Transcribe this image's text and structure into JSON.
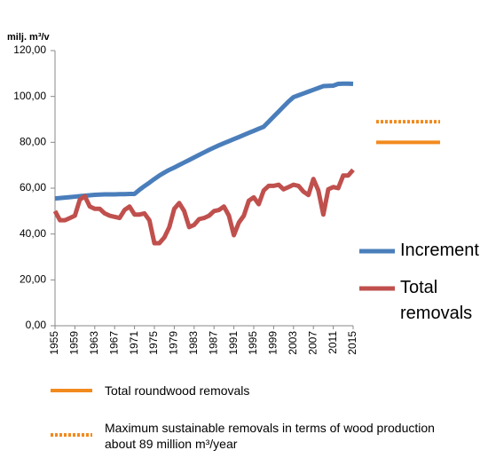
{
  "chart_data": {
    "type": "line",
    "y_label": "milj. m³/v",
    "x": [
      1955,
      1956,
      1957,
      1958,
      1959,
      1960,
      1961,
      1962,
      1963,
      1964,
      1965,
      1966,
      1967,
      1968,
      1969,
      1970,
      1971,
      1972,
      1973,
      1974,
      1975,
      1976,
      1977,
      1978,
      1979,
      1980,
      1981,
      1982,
      1983,
      1984,
      1985,
      1986,
      1987,
      1988,
      1989,
      1990,
      1991,
      1992,
      1993,
      1994,
      1995,
      1996,
      1997,
      1998,
      1999,
      2000,
      2001,
      2002,
      2003,
      2004,
      2005,
      2006,
      2007,
      2008,
      2009,
      2010,
      2011,
      2012,
      2013,
      2014,
      2015
    ],
    "xlim": [
      1955,
      2015
    ],
    "xticks": [
      1955,
      1959,
      1963,
      1967,
      1971,
      1975,
      1979,
      1983,
      1987,
      1991,
      1995,
      1999,
      2003,
      2007,
      2011,
      2015
    ],
    "ylim": [
      0,
      120
    ],
    "yticks": [
      {
        "value": 0,
        "label": "0,00"
      },
      {
        "value": 20,
        "label": "20,00"
      },
      {
        "value": 40,
        "label": "40,00"
      },
      {
        "value": 60,
        "label": "60,00"
      },
      {
        "value": 80,
        "label": "80,00"
      },
      {
        "value": 100,
        "label": "100,00"
      },
      {
        "value": 120,
        "label": "120,00"
      }
    ],
    "grid": false,
    "series": [
      {
        "name": "Increment",
        "color": "#4a7ebb",
        "values": [
          55.5,
          55.7,
          55.9,
          56.1,
          56.3,
          56.5,
          56.7,
          56.9,
          57.1,
          57.2,
          57.3,
          57.3,
          57.3,
          57.4,
          57.4,
          57.5,
          57.5,
          59.3,
          60.9,
          62.4,
          64,
          65.5,
          66.8,
          68,
          69,
          70.1,
          71.2,
          72.3,
          73.4,
          74.5,
          75.6,
          76.7,
          77.7,
          78.7,
          79.6,
          80.5,
          81.4,
          82.3,
          83.2,
          84.1,
          85,
          85.9,
          86.8,
          89,
          91.2,
          93.4,
          95.6,
          97.8,
          99.7,
          100.5,
          101.3,
          102.1,
          102.9,
          103.7,
          104.5,
          104.6,
          104.7,
          105.5,
          105.6,
          105.6,
          105.5
        ]
      },
      {
        "name": "Total removals",
        "color": "#c0504d",
        "values": [
          50,
          46,
          46,
          47,
          48,
          55,
          56.5,
          52,
          51,
          51,
          49,
          48,
          47.5,
          47,
          50.5,
          52,
          48.5,
          48.5,
          49,
          46,
          36,
          36,
          38.5,
          43,
          51,
          53.5,
          50,
          43,
          44,
          46.5,
          47,
          48,
          50,
          50.5,
          52,
          48,
          39.5,
          45,
          48,
          54.5,
          56,
          53,
          59,
          61,
          61,
          61.5,
          59.5,
          60.5,
          61.5,
          61,
          58.5,
          57,
          64,
          59,
          48.5,
          59.5,
          60.5,
          60,
          65.5,
          65.5,
          68
        ]
      }
    ],
    "reference_lines": [
      {
        "name": "Total roundwood removals",
        "value": 80,
        "color": "#f28a1e",
        "style": "solid"
      },
      {
        "name": "Maximum sustainable removals in terms of wood production about 89 million m³/year",
        "value": 89,
        "color": "#f28a1e",
        "style": "dotted"
      }
    ]
  }
}
